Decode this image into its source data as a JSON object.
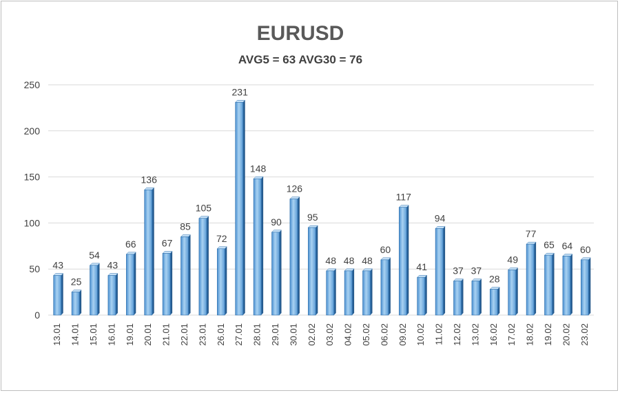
{
  "chart_data": {
    "type": "bar",
    "title": "EURUSD",
    "subtitle": "AVG5 = 63 AVG30 = 76",
    "xlabel": "",
    "ylabel": "",
    "ylim": [
      0,
      250
    ],
    "yticks": [
      0,
      50,
      100,
      150,
      200,
      250
    ],
    "grid": true,
    "legend": "none",
    "categories": [
      "13.01",
      "14.01",
      "15.01",
      "16.01",
      "19.01",
      "20.01",
      "21.01",
      "22.01",
      "23.01",
      "26.01",
      "27.01",
      "28.01",
      "29.01",
      "30.01",
      "02.02",
      "03.02",
      "04.02",
      "05.02",
      "06.02",
      "09.02",
      "10.02",
      "11.02",
      "12.02",
      "13.02",
      "16.02",
      "17.02",
      "18.02",
      "19.02",
      "20.02",
      "23.02"
    ],
    "values": [
      43,
      25,
      54,
      43,
      66,
      136,
      67,
      85,
      105,
      72,
      231,
      148,
      90,
      126,
      95,
      48,
      48,
      48,
      60,
      117,
      41,
      94,
      37,
      37,
      28,
      49,
      77,
      65,
      64,
      60
    ],
    "colors": {
      "bar_light": "#a8d0f0",
      "bar_dark": "#4a90d0",
      "bar_edge": "#2f6faa"
    }
  }
}
